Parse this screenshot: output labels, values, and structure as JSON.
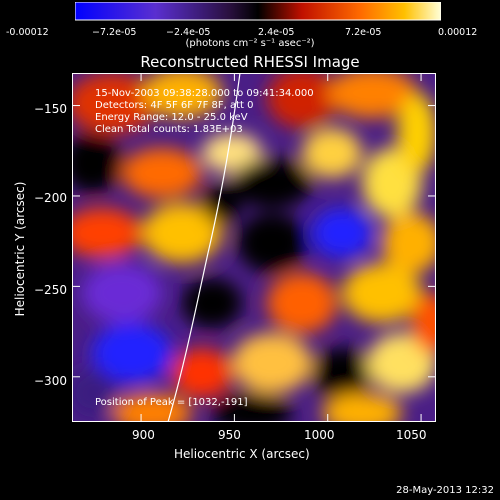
{
  "colorbar": {
    "labels": [
      "-0.00012",
      "−7.2e-05",
      "−2.4e-05",
      "2.4e-05",
      "7.2e-05",
      "0.00012"
    ],
    "units": "(photons cm⁻² s⁻¹ asec⁻²)"
  },
  "plot": {
    "title": "Reconstructed RHESSI Image",
    "xlabel": "Heliocentric X (arcsec)",
    "ylabel": "Heliocentric Y (arcsec)",
    "x_ticks": [
      "900",
      "950",
      "1000",
      "1050"
    ],
    "y_ticks": [
      "−150",
      "−200",
      "−250",
      "−300"
    ]
  },
  "info": {
    "time": "15-Nov-2003 09:38:28.000 to 09:41:34.000",
    "detectors": "Detectors: 4F 5F 6F 7F 8F, att 0",
    "energy": "Energy Range: 12.0 - 25.0 keV",
    "clean": "Clean     Total counts: 1.83E+03",
    "peak": "Position of Peak = [1032,-191]"
  },
  "timestamp": "28-May-2013 12:32",
  "chart_data": {
    "type": "heatmap",
    "title": "Reconstructed RHESSI Image",
    "xlabel": "Heliocentric X (arcsec)",
    "ylabel": "Heliocentric Y (arcsec)",
    "xlim": [
      863,
      1058
    ],
    "ylim": [
      -325,
      -132
    ],
    "x_ticks": [
      900,
      950,
      1000,
      1050
    ],
    "y_ticks": [
      -150,
      -200,
      -250,
      -300
    ],
    "colorbar_range": [
      -0.00012,
      0.00012
    ],
    "colormap_colors": [
      "#1a1aff",
      "#6a2bd6",
      "#000000",
      "#ff2a00",
      "#ffc000",
      "#ffffe0"
    ],
    "limb_color": "#ffffff",
    "peak_position": [
      1032,
      -191
    ]
  }
}
